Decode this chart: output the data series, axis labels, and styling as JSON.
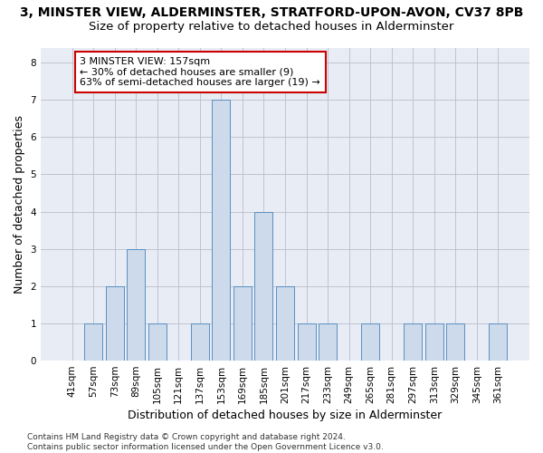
{
  "title": "3, MINSTER VIEW, ALDERMINSTER, STRATFORD-UPON-AVON, CV37 8PB",
  "subtitle": "Size of property relative to detached houses in Alderminster",
  "xlabel": "Distribution of detached houses by size in Alderminster",
  "ylabel": "Number of detached properties",
  "categories": [
    "41sqm",
    "57sqm",
    "73sqm",
    "89sqm",
    "105sqm",
    "121sqm",
    "137sqm",
    "153sqm",
    "169sqm",
    "185sqm",
    "201sqm",
    "217sqm",
    "233sqm",
    "249sqm",
    "265sqm",
    "281sqm",
    "297sqm",
    "313sqm",
    "329sqm",
    "345sqm",
    "361sqm"
  ],
  "values": [
    0,
    1,
    2,
    3,
    1,
    0,
    1,
    7,
    2,
    4,
    2,
    1,
    1,
    0,
    1,
    0,
    1,
    1,
    1,
    0,
    1
  ],
  "bar_color": "#ccdaeb",
  "bar_edge_color": "#5a8fc0",
  "annotation_line1": "3 MINSTER VIEW: 157sqm",
  "annotation_line2": "← 30% of detached houses are smaller (9)",
  "annotation_line3": "63% of semi-detached houses are larger (19) →",
  "annotation_box_color": "white",
  "annotation_box_edge_color": "#cc0000",
  "ylim": [
    0,
    8.4
  ],
  "yticks": [
    0,
    1,
    2,
    3,
    4,
    5,
    6,
    7,
    8
  ],
  "grid_color": "#bbbbcc",
  "bg_color": "#e8edf5",
  "footer": "Contains HM Land Registry data © Crown copyright and database right 2024.\nContains public sector information licensed under the Open Government Licence v3.0.",
  "title_fontsize": 10,
  "subtitle_fontsize": 9.5,
  "xlabel_fontsize": 9,
  "ylabel_fontsize": 9,
  "tick_fontsize": 7.5,
  "annotation_fontsize": 8,
  "footer_fontsize": 6.5
}
